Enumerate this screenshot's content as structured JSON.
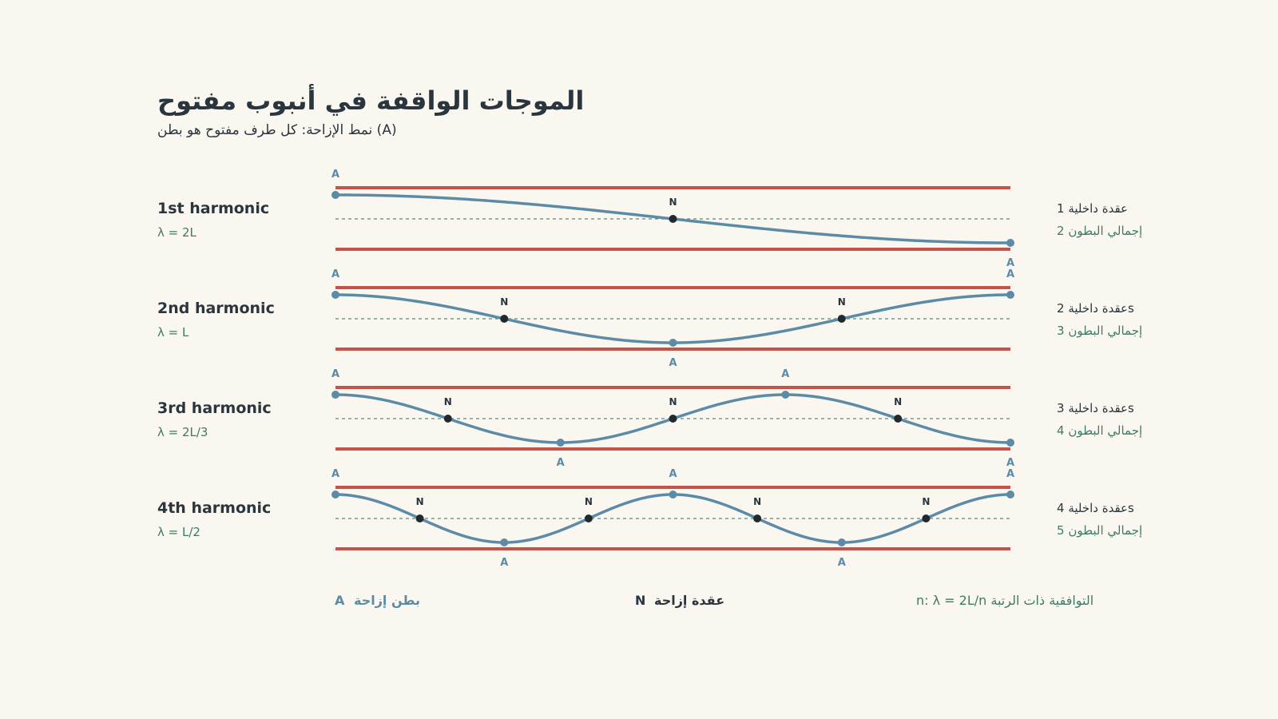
{
  "title": "الموجات الواقفة في أنبوب مفتوح",
  "subtitle": "نمط الإزاحة: كل طرف مفتوح هو بطن (A)",
  "colors": {
    "background": "#faf7f1",
    "tube_wall": "#c4534a",
    "wave": "#5b8ba6",
    "node": "#22292e",
    "axis": "#5a8a7a",
    "text_dark": "#2a353d",
    "text_green": "#3f7a66"
  },
  "markers": {
    "antinode": "A",
    "node": "N"
  },
  "harmonics": [
    {
      "n": 1,
      "label": "1st harmonic",
      "wavelength": "λ = 2L",
      "internal_nodes": "1 عقدة داخلية",
      "total_antinodes": "2 إجمالي البطون"
    },
    {
      "n": 2,
      "label": "2nd harmonic",
      "wavelength": "λ = L",
      "internal_nodes": "2 عقدة داخليةs",
      "total_antinodes": "3 إجمالي البطون"
    },
    {
      "n": 3,
      "label": "3rd harmonic",
      "wavelength": "λ = 2L/3",
      "internal_nodes": "3 عقدة داخليةs",
      "total_antinodes": "4 إجمالي البطون"
    },
    {
      "n": 4,
      "label": "4th harmonic",
      "wavelength": "λ = L/2",
      "internal_nodes": "4 عقدة داخليةs",
      "total_antinodes": "5 إجمالي البطون"
    }
  ],
  "legend": {
    "antinode_symbol": "A",
    "antinode_text": "بطن إزاحة",
    "node_symbol": "N",
    "node_text": "عقدة إزاحة",
    "formula": "n:  λ = 2L/n التوافقية ذات الرتبة"
  }
}
